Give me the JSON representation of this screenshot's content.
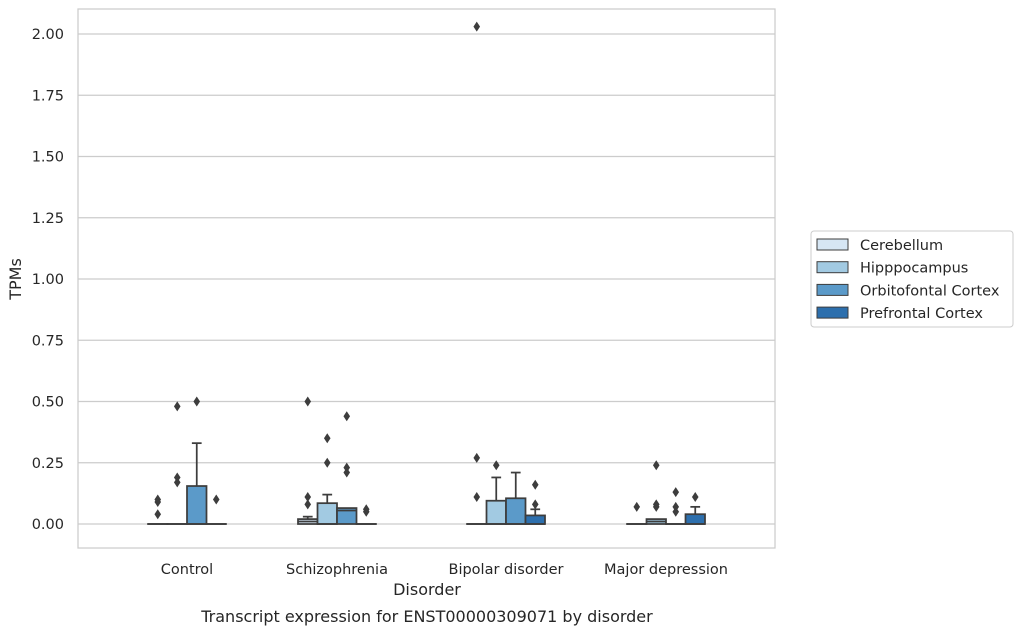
{
  "chart_data": {
    "type": "box",
    "title": "",
    "caption": "Transcript expression for ENST00000309071 by disorder",
    "xlabel": "Disorder",
    "ylabel": "TPMs",
    "ylim": [
      -0.1,
      2.13
    ],
    "yticks": [
      "0.00",
      "0.25",
      "0.50",
      "0.75",
      "1.00",
      "1.25",
      "1.50",
      "1.75",
      "2.00"
    ],
    "grid": "horizontal",
    "legend_position": "right",
    "categories": [
      "Control",
      "Schizophrenia",
      "Bipolar disorder",
      "Major depression"
    ],
    "series": [
      {
        "name": "Cerebellum",
        "color": "#d6e6f4",
        "boxes": [
          {
            "category": "Control",
            "q1": 0,
            "median": 0,
            "q3": 0,
            "whisker_low": 0,
            "whisker_high": 0,
            "outliers": [
              0.04,
              0.09,
              0.1
            ]
          },
          {
            "category": "Schizophrenia",
            "q1": 0,
            "median": 0.01,
            "q3": 0.02,
            "whisker_low": 0,
            "whisker_high": 0.03,
            "outliers": [
              0.08,
              0.11,
              0.5
            ]
          },
          {
            "category": "Bipolar disorder",
            "q1": 0,
            "median": 0,
            "q3": 0,
            "whisker_low": 0,
            "whisker_high": 0,
            "outliers": [
              0.11,
              0.27,
              2.03
            ]
          },
          {
            "category": "Major depression",
            "q1": 0,
            "median": 0,
            "q3": 0,
            "whisker_low": 0,
            "whisker_high": 0,
            "outliers": [
              0.07
            ]
          }
        ]
      },
      {
        "name": "Hipppocampus",
        "color": "#a2cae2",
        "boxes": [
          {
            "category": "Control",
            "q1": 0,
            "median": 0,
            "q3": 0,
            "whisker_low": 0,
            "whisker_high": 0,
            "outliers": [
              0.17,
              0.19,
              0.48
            ]
          },
          {
            "category": "Schizophrenia",
            "q1": 0,
            "median": 0,
            "q3": 0.085,
            "whisker_low": 0,
            "whisker_high": 0.12,
            "outliers": [
              0.25,
              0.35
            ]
          },
          {
            "category": "Bipolar disorder",
            "q1": 0,
            "median": 0,
            "q3": 0.095,
            "whisker_low": 0,
            "whisker_high": 0.19,
            "outliers": [
              0.24
            ]
          },
          {
            "category": "Major depression",
            "q1": 0,
            "median": 0.01,
            "q3": 0.02,
            "whisker_low": 0,
            "whisker_high": 0.02,
            "outliers": [
              0.07,
              0.08,
              0.24
            ]
          }
        ]
      },
      {
        "name": "Orbitofontal Cortex",
        "color": "#5b9ac9",
        "boxes": [
          {
            "category": "Control",
            "q1": 0,
            "median": 0,
            "q3": 0.155,
            "whisker_low": 0,
            "whisker_high": 0.33,
            "outliers": [
              0.5
            ]
          },
          {
            "category": "Schizophrenia",
            "q1": 0,
            "median": 0.055,
            "q3": 0.065,
            "whisker_low": 0,
            "whisker_high": 0.065,
            "outliers": [
              0.21,
              0.23,
              0.44
            ]
          },
          {
            "category": "Bipolar disorder",
            "q1": 0,
            "median": 0,
            "q3": 0.105,
            "whisker_low": 0,
            "whisker_high": 0.21,
            "outliers": []
          },
          {
            "category": "Major depression",
            "q1": 0,
            "median": 0,
            "q3": 0,
            "whisker_low": 0,
            "whisker_high": 0,
            "outliers": [
              0.05,
              0.07,
              0.13
            ]
          }
        ]
      },
      {
        "name": "Prefrontal Cortex",
        "color": "#2d6fad",
        "boxes": [
          {
            "category": "Control",
            "q1": 0,
            "median": 0,
            "q3": 0,
            "whisker_low": 0,
            "whisker_high": 0,
            "outliers": [
              0.1
            ]
          },
          {
            "category": "Schizophrenia",
            "q1": 0,
            "median": 0,
            "q3": 0,
            "whisker_low": 0,
            "whisker_high": 0,
            "outliers": [
              0.05,
              0.06
            ]
          },
          {
            "category": "Bipolar disorder",
            "q1": 0,
            "median": 0,
            "q3": 0.035,
            "whisker_low": 0,
            "whisker_high": 0.06,
            "outliers": [
              0.08,
              0.16
            ]
          },
          {
            "category": "Major depression",
            "q1": 0,
            "median": 0,
            "q3": 0.04,
            "whisker_low": 0,
            "whisker_high": 0.07,
            "outliers": [
              0.11
            ]
          }
        ]
      }
    ]
  }
}
